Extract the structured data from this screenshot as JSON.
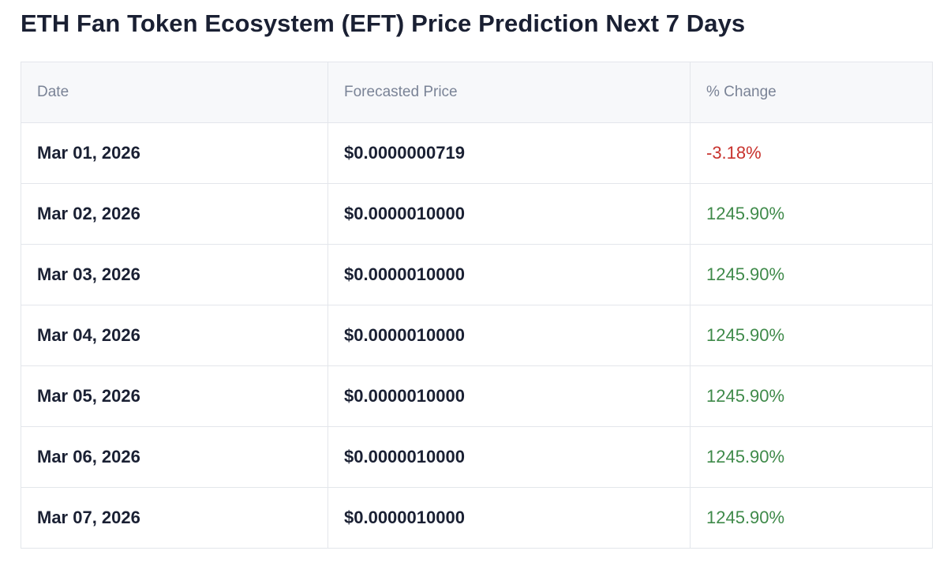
{
  "title": "ETH Fan Token Ecosystem (EFT) Price Prediction Next 7 Days",
  "table": {
    "headers": [
      "Date",
      "Forecasted Price",
      "% Change"
    ],
    "rows": [
      {
        "date": "Mar 01, 2026",
        "price": "$0.0000000719",
        "change": "-3.18%",
        "direction": "negative"
      },
      {
        "date": "Mar 02, 2026",
        "price": "$0.0000010000",
        "change": "1245.90%",
        "direction": "positive"
      },
      {
        "date": "Mar 03, 2026",
        "price": "$0.0000010000",
        "change": "1245.90%",
        "direction": "positive"
      },
      {
        "date": "Mar 04, 2026",
        "price": "$0.0000010000",
        "change": "1245.90%",
        "direction": "positive"
      },
      {
        "date": "Mar 05, 2026",
        "price": "$0.0000010000",
        "change": "1245.90%",
        "direction": "positive"
      },
      {
        "date": "Mar 06, 2026",
        "price": "$0.0000010000",
        "change": "1245.90%",
        "direction": "positive"
      },
      {
        "date": "Mar 07, 2026",
        "price": "$0.0000010000",
        "change": "1245.90%",
        "direction": "positive"
      }
    ]
  },
  "colors": {
    "negative": "#c8322d",
    "positive": "#3f8a4a",
    "text": "#1a2033",
    "header_text": "#7a8396",
    "header_bg": "#f7f8fa",
    "border": "#e3e6eb"
  }
}
